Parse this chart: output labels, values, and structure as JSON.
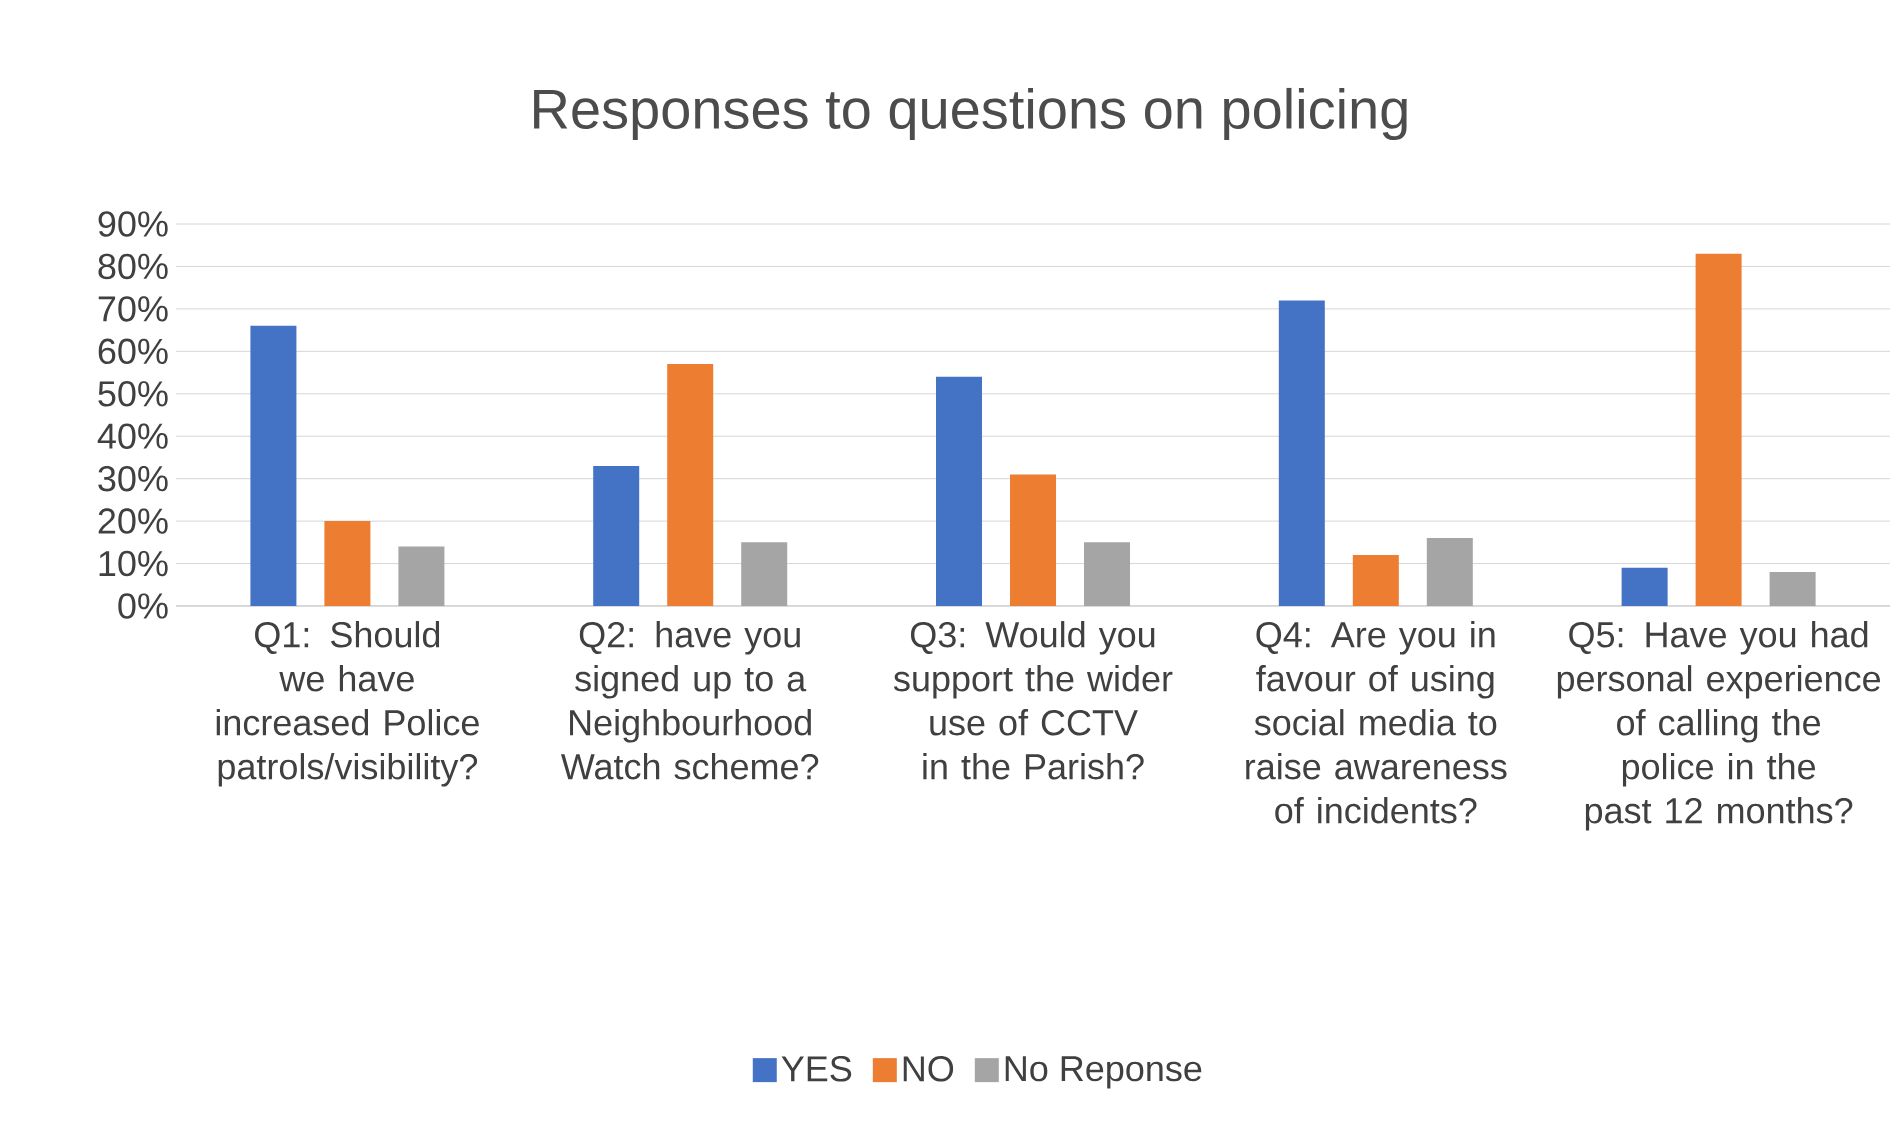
{
  "chart_data": {
    "type": "bar",
    "title": "Responses to questions on policing",
    "categories": [
      "Q1: Should we have increased Police patrols/visibility?",
      "Q2: have you signed up to a Neighbourhood Watch scheme?",
      "Q3: Would you support the wider use of CCTV in the Parish?",
      "Q4: Are you in favour of using social media to raise awareness of incidents?",
      "Q5: Have you had personal experience of calling the police in the past 12 months?"
    ],
    "series": [
      {
        "name": "YES",
        "color": "#4472c4",
        "values": [
          66,
          33,
          54,
          72,
          9
        ]
      },
      {
        "name": "NO",
        "color": "#ed7d31",
        "values": [
          20,
          57,
          31,
          12,
          83
        ]
      },
      {
        "name": "No Reponse",
        "color": "#a5a5a5",
        "values": [
          14,
          15,
          15,
          16,
          8
        ]
      }
    ],
    "ylim": [
      0,
      90
    ],
    "yticks": [
      {
        "value": 0,
        "label": "0%"
      },
      {
        "value": 10,
        "label": "10%"
      },
      {
        "value": 20,
        "label": "20%"
      },
      {
        "value": 30,
        "label": "30%"
      },
      {
        "value": 40,
        "label": "40%"
      },
      {
        "value": 50,
        "label": "50%"
      },
      {
        "value": 60,
        "label": "60%"
      },
      {
        "value": 70,
        "label": "70%"
      },
      {
        "value": 80,
        "label": "80%"
      },
      {
        "value": 90,
        "label": "90%"
      }
    ],
    "grid": "y",
    "legend": "bottom"
  }
}
